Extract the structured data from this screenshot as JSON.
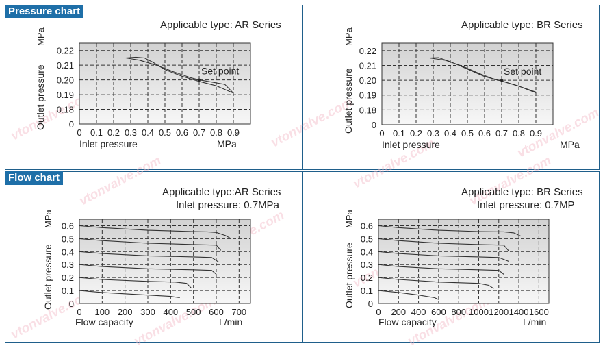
{
  "sections": {
    "pressure": "Pressure chart",
    "flow": "Flow chart"
  },
  "watermark": "vtonvalve.com",
  "chart_data": [
    {
      "id": "p1",
      "type": "line",
      "title": "Applicable type: AR Series",
      "subtitle": "",
      "ylabel": "Outlet pressure",
      "yunit": "MPa",
      "xlabel": "Inlet pressure",
      "xunit": "MPa",
      "xticks": [
        "0",
        "0.1",
        "0.2",
        "0.3",
        "0.4",
        "0.5",
        "0.6",
        "0.7",
        "0.8",
        "0.9"
      ],
      "yticks": [
        "0",
        "0.18",
        "0.19",
        "0.20",
        "0.21",
        "0.22"
      ],
      "annotation": "Set point",
      "annotation_at": [
        0.7,
        0.2
      ],
      "series": [
        {
          "points": [
            [
              0.27,
              0.215
            ],
            [
              0.33,
              0.2155
            ],
            [
              0.38,
              0.215
            ],
            [
              0.43,
              0.212
            ],
            [
              0.5,
              0.207
            ],
            [
              0.6,
              0.2025
            ],
            [
              0.7,
              0.199
            ],
            [
              0.8,
              0.196
            ],
            [
              0.9,
              0.191
            ]
          ]
        },
        {
          "points": [
            [
              0.27,
              0.215
            ],
            [
              0.35,
              0.2135
            ],
            [
              0.45,
              0.21
            ],
            [
              0.55,
              0.2055
            ],
            [
              0.65,
              0.2015
            ],
            [
              0.7,
              0.2
            ],
            [
              0.8,
              0.198
            ],
            [
              0.85,
              0.197
            ],
            [
              0.9,
              0.191
            ]
          ]
        }
      ]
    },
    {
      "id": "p2",
      "type": "line",
      "title": "Applicable type: BR Series",
      "subtitle": "",
      "ylabel": "Outlet pressure",
      "yunit": "MPa",
      "xlabel": "Inlet pressure",
      "xunit": "MPa",
      "xticks": [
        "0",
        "0.1",
        "0.2",
        "0.3",
        "0.4",
        "0.5",
        "0.6",
        "0.7",
        "0.8",
        "0.9"
      ],
      "yticks": [
        "0",
        "0.18",
        "0.19",
        "0.20",
        "0.21",
        "0.22"
      ],
      "annotation": "Set point",
      "annotation_at": [
        0.7,
        0.2
      ],
      "series": [
        {
          "points": [
            [
              0.28,
              0.215
            ],
            [
              0.33,
              0.2153
            ],
            [
              0.4,
              0.2125
            ],
            [
              0.5,
              0.2075
            ],
            [
              0.6,
              0.2025
            ],
            [
              0.7,
              0.1995
            ],
            [
              0.8,
              0.196
            ],
            [
              0.9,
              0.1915
            ]
          ]
        },
        {
          "points": [
            [
              0.28,
              0.215
            ],
            [
              0.37,
              0.2135
            ],
            [
              0.47,
              0.2095
            ],
            [
              0.57,
              0.2045
            ],
            [
              0.66,
              0.2005
            ],
            [
              0.7,
              0.1995
            ],
            [
              0.8,
              0.196
            ],
            [
              0.9,
              0.192
            ]
          ]
        }
      ]
    },
    {
      "id": "f1",
      "type": "line",
      "title": "Applicable type:AR Series",
      "subtitle": "Inlet pressure: 0.7MPa",
      "ylabel": "Outlet pressure",
      "yunit": "MPa",
      "xlabel": "Flow capacity",
      "xunit": "L/min",
      "xticks": [
        "0",
        "100",
        "200",
        "300",
        "400",
        "500",
        "600",
        "700"
      ],
      "yticks": [
        "0",
        "0.1",
        "0.2",
        "0.3",
        "0.4",
        "0.5",
        "0.6"
      ],
      "series": [
        {
          "points": [
            [
              0,
              0.6
            ],
            [
              100,
              0.585
            ],
            [
              300,
              0.565
            ],
            [
              500,
              0.555
            ],
            [
              560,
              0.553
            ],
            [
              600,
              0.548
            ],
            [
              640,
              0.525
            ],
            [
              660,
              0.505
            ]
          ]
        },
        {
          "points": [
            [
              0,
              0.5
            ],
            [
              100,
              0.485
            ],
            [
              300,
              0.465
            ],
            [
              500,
              0.455
            ],
            [
              600,
              0.45
            ],
            [
              620,
              0.41
            ]
          ]
        },
        {
          "points": [
            [
              0,
              0.4
            ],
            [
              100,
              0.385
            ],
            [
              300,
              0.368
            ],
            [
              500,
              0.36
            ],
            [
              580,
              0.355
            ],
            [
              610,
              0.32
            ]
          ]
        },
        {
          "points": [
            [
              0,
              0.3
            ],
            [
              100,
              0.285
            ],
            [
              300,
              0.268
            ],
            [
              500,
              0.26
            ],
            [
              580,
              0.255
            ],
            [
              600,
              0.225
            ]
          ]
        },
        {
          "points": [
            [
              0,
              0.2
            ],
            [
              100,
              0.185
            ],
            [
              300,
              0.17
            ],
            [
              420,
              0.165
            ],
            [
              470,
              0.155
            ],
            [
              490,
              0.12
            ]
          ]
        },
        {
          "points": [
            [
              0,
              0.1
            ],
            [
              100,
              0.085
            ],
            [
              250,
              0.07
            ],
            [
              400,
              0.055
            ],
            [
              440,
              0.045
            ]
          ]
        }
      ]
    },
    {
      "id": "f2",
      "type": "line",
      "title": "Applicable type: BR Series",
      "subtitle": "Inlet pressure: 0.7MP",
      "ylabel": "Outlet pressure",
      "yunit": "MPa",
      "xlabel": "Flow capacity",
      "xunit": "L/min",
      "xticks": [
        "0",
        "200",
        "400",
        "600",
        "800",
        "1000",
        "1200",
        "1400",
        "1600"
      ],
      "yticks": [
        "0",
        "0.1",
        "0.2",
        "0.3",
        "0.4",
        "0.5",
        "0.6"
      ],
      "series": [
        {
          "points": [
            [
              0,
              0.6
            ],
            [
              200,
              0.585
            ],
            [
              600,
              0.565
            ],
            [
              1000,
              0.555
            ],
            [
              1250,
              0.553
            ],
            [
              1350,
              0.545
            ],
            [
              1420,
              0.52
            ]
          ]
        },
        {
          "points": [
            [
              0,
              0.5
            ],
            [
              200,
              0.485
            ],
            [
              600,
              0.465
            ],
            [
              1000,
              0.455
            ],
            [
              1250,
              0.45
            ],
            [
              1300,
              0.405
            ]
          ]
        },
        {
          "points": [
            [
              0,
              0.4
            ],
            [
              200,
              0.385
            ],
            [
              600,
              0.368
            ],
            [
              1000,
              0.36
            ],
            [
              1200,
              0.355
            ],
            [
              1300,
              0.325
            ]
          ]
        },
        {
          "points": [
            [
              0,
              0.3
            ],
            [
              200,
              0.285
            ],
            [
              600,
              0.268
            ],
            [
              1000,
              0.26
            ],
            [
              1200,
              0.255
            ],
            [
              1250,
              0.225
            ]
          ]
        },
        {
          "points": [
            [
              0,
              0.2
            ],
            [
              200,
              0.185
            ],
            [
              600,
              0.165
            ],
            [
              1000,
              0.155
            ],
            [
              1100,
              0.14
            ],
            [
              1150,
              0.115
            ]
          ]
        },
        {
          "points": [
            [
              0,
              0.1
            ],
            [
              200,
              0.085
            ],
            [
              400,
              0.065
            ],
            [
              560,
              0.045
            ],
            [
              600,
              0.03
            ]
          ]
        }
      ]
    }
  ]
}
